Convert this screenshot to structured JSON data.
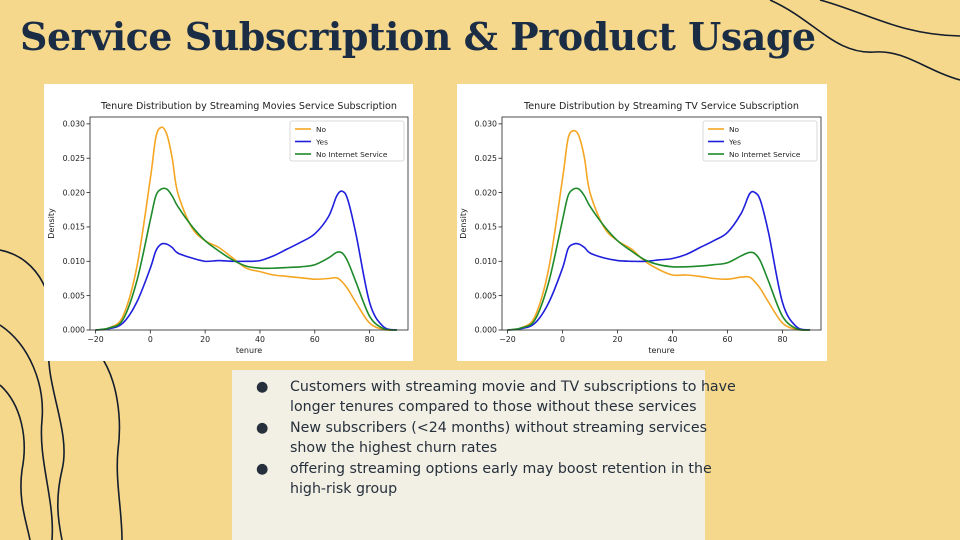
{
  "slide": {
    "title": "Service Subscription & Product Usage",
    "background": "#f6d88d",
    "title_color": "#1b2d45"
  },
  "chart_data": [
    {
      "type": "line",
      "title": "Tenure Distribution by Streaming Movies Service Subscription",
      "xlabel": "tenure",
      "ylabel": "Density",
      "xlim": [
        -22,
        94
      ],
      "ylim": [
        0,
        0.031
      ],
      "x_ticks": [
        -20,
        0,
        20,
        40,
        60,
        80
      ],
      "y_ticks": [
        0.0,
        0.005,
        0.01,
        0.015,
        0.02,
        0.025,
        0.03
      ],
      "legend_position": "top-right",
      "x": [
        -20,
        -15,
        -10,
        -5,
        0,
        2,
        4,
        6,
        8,
        10,
        15,
        20,
        25,
        30,
        35,
        40,
        45,
        50,
        55,
        60,
        65,
        68,
        70,
        72,
        75,
        80,
        85,
        90
      ],
      "series": [
        {
          "name": "No",
          "color": "#f5a623",
          "values": [
            0.0,
            0.0003,
            0.002,
            0.009,
            0.022,
            0.028,
            0.0295,
            0.0285,
            0.025,
            0.02,
            0.015,
            0.013,
            0.012,
            0.0105,
            0.009,
            0.0085,
            0.008,
            0.0078,
            0.0076,
            0.0074,
            0.0075,
            0.0076,
            0.007,
            0.006,
            0.004,
            0.001,
            0.0001,
            0.0
          ]
        },
        {
          "name": "Yes",
          "color": "#1f1fdd",
          "values": [
            0.0,
            0.0002,
            0.001,
            0.004,
            0.009,
            0.0115,
            0.0125,
            0.0125,
            0.012,
            0.0112,
            0.0105,
            0.01,
            0.0101,
            0.01,
            0.01,
            0.0101,
            0.0108,
            0.0118,
            0.0128,
            0.014,
            0.0165,
            0.0195,
            0.0202,
            0.019,
            0.014,
            0.004,
            0.0005,
            0.0
          ]
        },
        {
          "name": "No Internet Service",
          "color": "#1e8a2a",
          "values": [
            0.0,
            0.0003,
            0.0015,
            0.007,
            0.016,
            0.0195,
            0.0205,
            0.0205,
            0.0195,
            0.018,
            0.0152,
            0.013,
            0.0115,
            0.0102,
            0.0093,
            0.009,
            0.009,
            0.0091,
            0.0092,
            0.0095,
            0.0105,
            0.0113,
            0.0112,
            0.01,
            0.007,
            0.002,
            0.0002,
            0.0
          ]
        }
      ]
    },
    {
      "type": "line",
      "title": "Tenure Distribution by Streaming TV Service Subscription",
      "xlabel": "tenure",
      "ylabel": "Density",
      "xlim": [
        -22,
        94
      ],
      "ylim": [
        0,
        0.031
      ],
      "x_ticks": [
        -20,
        0,
        20,
        40,
        60,
        80
      ],
      "y_ticks": [
        0.0,
        0.005,
        0.01,
        0.015,
        0.02,
        0.025,
        0.03
      ],
      "legend_position": "top-right",
      "x": [
        -20,
        -15,
        -10,
        -5,
        0,
        2,
        4,
        6,
        8,
        10,
        15,
        20,
        25,
        30,
        35,
        40,
        45,
        50,
        55,
        60,
        65,
        68,
        70,
        72,
        75,
        80,
        85,
        90
      ],
      "series": [
        {
          "name": "No",
          "color": "#f5a623",
          "values": [
            0.0,
            0.0003,
            0.002,
            0.009,
            0.022,
            0.0278,
            0.029,
            0.0282,
            0.025,
            0.02,
            0.015,
            0.013,
            0.0118,
            0.01,
            0.0088,
            0.008,
            0.008,
            0.0078,
            0.0075,
            0.0074,
            0.0077,
            0.0077,
            0.007,
            0.006,
            0.004,
            0.001,
            0.0001,
            0.0
          ]
        },
        {
          "name": "Yes",
          "color": "#1f1fdd",
          "values": [
            0.0,
            0.0002,
            0.001,
            0.004,
            0.009,
            0.0118,
            0.0125,
            0.0125,
            0.012,
            0.0112,
            0.0105,
            0.0101,
            0.01,
            0.01,
            0.0102,
            0.0104,
            0.011,
            0.012,
            0.013,
            0.0142,
            0.017,
            0.0198,
            0.02,
            0.0188,
            0.014,
            0.004,
            0.0005,
            0.0
          ]
        },
        {
          "name": "No Internet Service",
          "color": "#1e8a2a",
          "values": [
            0.0,
            0.0003,
            0.0015,
            0.007,
            0.016,
            0.0195,
            0.0205,
            0.0205,
            0.0195,
            0.018,
            0.0152,
            0.013,
            0.0115,
            0.0102,
            0.0095,
            0.0092,
            0.0092,
            0.0093,
            0.0095,
            0.0098,
            0.0108,
            0.0113,
            0.0111,
            0.01,
            0.007,
            0.002,
            0.0002,
            0.0
          ]
        }
      ]
    }
  ],
  "notes": {
    "bullet_glyph": "●",
    "items": [
      {
        "line1": "Customers with streaming movie and TV subscriptions to have",
        "line2": "longer tenures compared to those without these services"
      },
      {
        "line1": "New subscribers (<24 months) without streaming services",
        "line2": "show the highest churn rates"
      },
      {
        "line1": "offering streaming options early may boost retention in the",
        "line2": "high-risk group"
      }
    ]
  }
}
